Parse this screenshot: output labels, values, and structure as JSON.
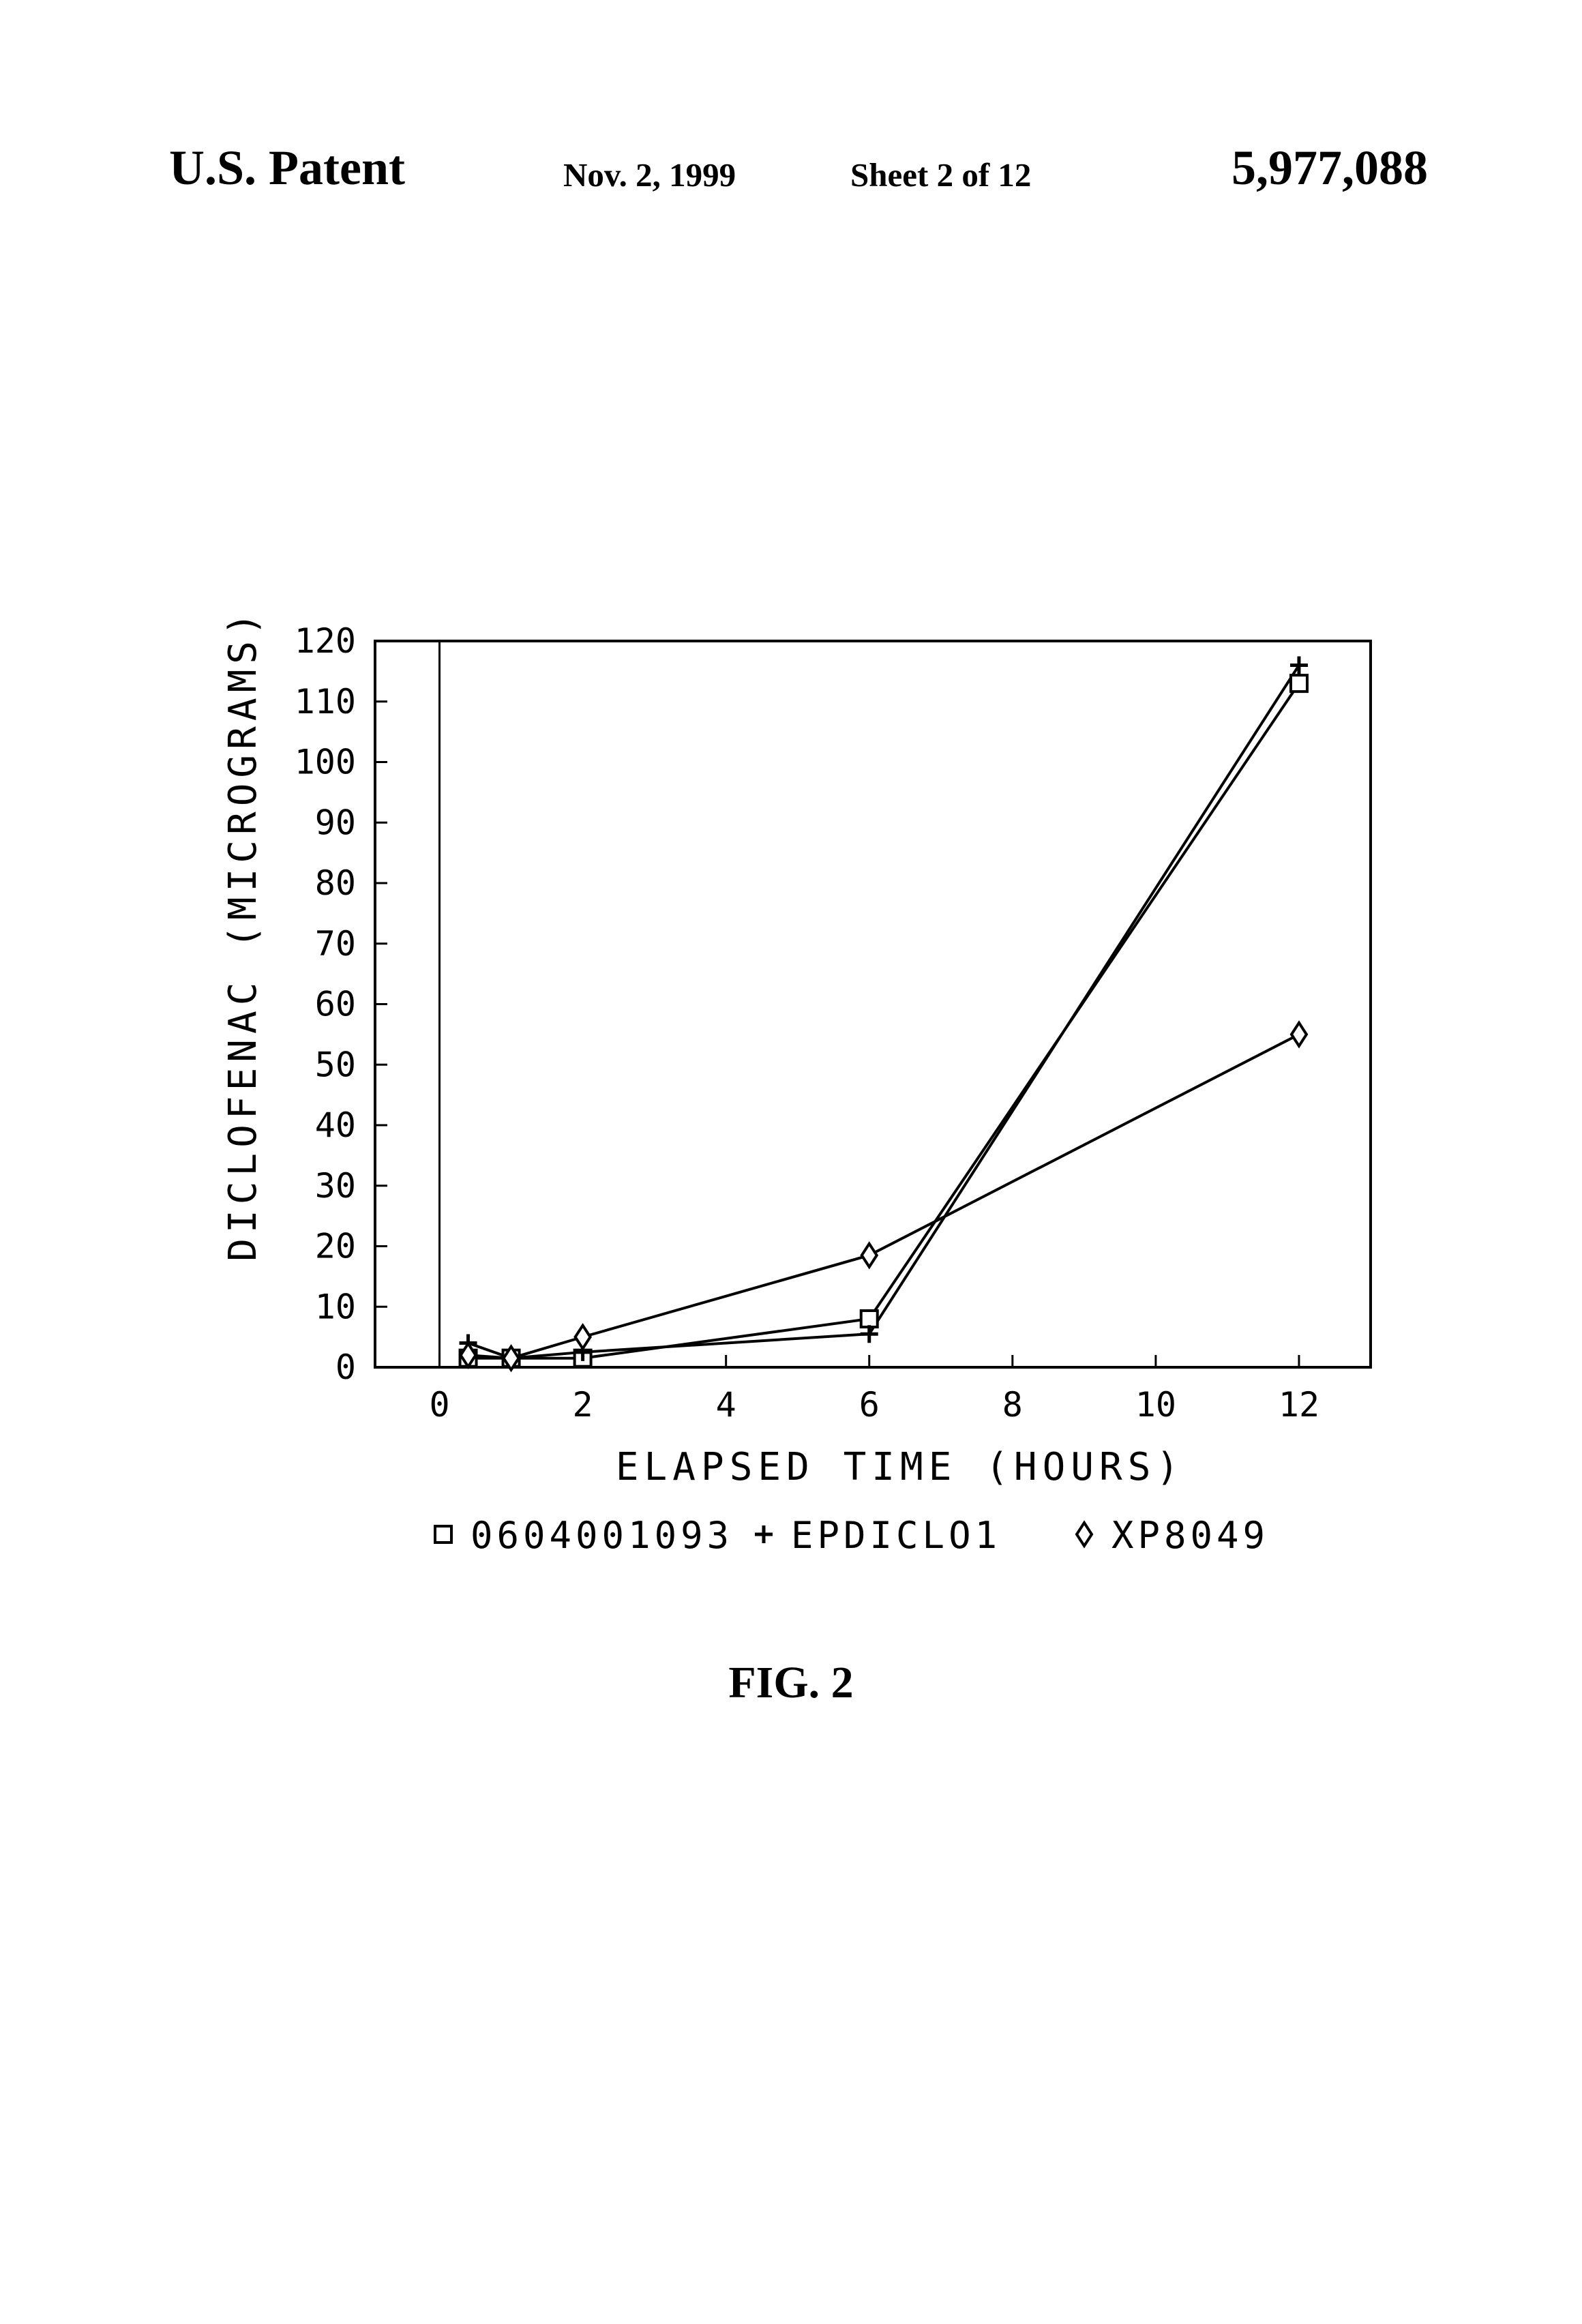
{
  "header": {
    "left": "U.S. Patent",
    "date": "Nov. 2, 1999",
    "sheet": "Sheet 2 of 12",
    "patent_number": "5,977,088"
  },
  "caption": "FIG. 2",
  "chart_data": {
    "type": "line",
    "title": "",
    "xlabel": "ELAPSED TIME (HOURS)",
    "ylabel": "DICLOFENAC (MICROGRAMS)",
    "xlim": [
      -0.9,
      13
    ],
    "ylim": [
      0,
      120
    ],
    "x_ticks": [
      0,
      2,
      4,
      6,
      8,
      10,
      12
    ],
    "y_ticks": [
      0,
      10,
      20,
      30,
      40,
      50,
      60,
      70,
      80,
      90,
      100,
      110,
      120
    ],
    "legend_placement": "bottom",
    "series": [
      {
        "name": "0604001093",
        "marker": "square",
        "x": [
          0.4,
          1,
          2,
          6,
          12
        ],
        "y": [
          1.5,
          1.5,
          1.5,
          8,
          113
        ]
      },
      {
        "name": "EPDICLO1",
        "marker": "plus",
        "x": [
          0.4,
          1,
          2,
          6,
          12
        ],
        "y": [
          4,
          1.5,
          2.5,
          5.5,
          116
        ]
      },
      {
        "name": "XP8049",
        "marker": "diamond",
        "x": [
          0.4,
          1,
          2,
          6,
          12
        ],
        "y": [
          2,
          1.5,
          5,
          18.5,
          55
        ]
      }
    ]
  }
}
